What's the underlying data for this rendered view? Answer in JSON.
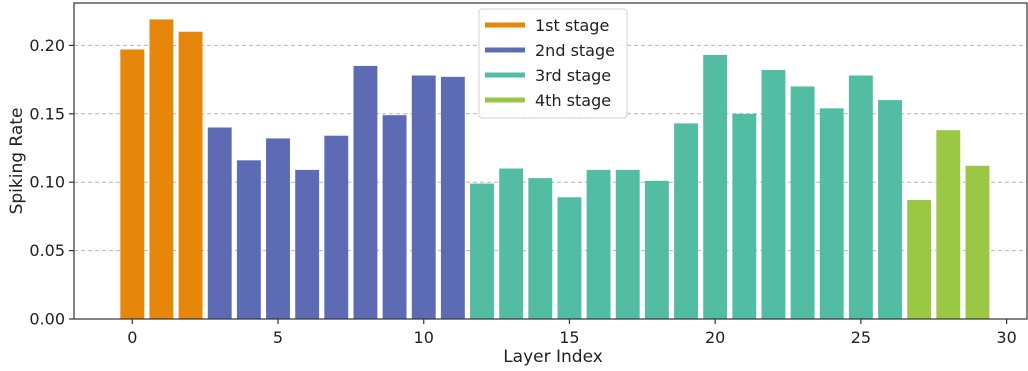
{
  "chart_data": {
    "type": "bar",
    "xlabel": "Layer Index",
    "ylabel": "Spiking Rate",
    "xlim": [
      -2.0,
      30.7
    ],
    "ylim": [
      0.0,
      0.231
    ],
    "xticks": [
      0,
      5,
      10,
      15,
      20,
      25,
      30
    ],
    "yticks": [
      0.0,
      0.05,
      0.1,
      0.15,
      0.2
    ],
    "ytick_labels": [
      "0.00",
      "0.05",
      "0.10",
      "0.15",
      "0.20"
    ],
    "grid": "y-dashed",
    "legend_position": "top-center",
    "series": [
      {
        "name": "1st stage",
        "color": "#E6860A",
        "x": [
          0,
          1,
          2
        ],
        "values": [
          0.197,
          0.219,
          0.21
        ]
      },
      {
        "name": "2nd stage",
        "color": "#5D6BB5",
        "x": [
          3,
          4,
          5,
          6,
          7,
          8,
          9,
          10,
          11
        ],
        "values": [
          0.14,
          0.116,
          0.132,
          0.109,
          0.134,
          0.185,
          0.149,
          0.178,
          0.177
        ]
      },
      {
        "name": "3rd stage",
        "color": "#52BDA2",
        "x": [
          12,
          13,
          14,
          15,
          16,
          17,
          18,
          19,
          20,
          21,
          22,
          23,
          24,
          25,
          26
        ],
        "values": [
          0.099,
          0.11,
          0.103,
          0.089,
          0.109,
          0.109,
          0.101,
          0.143,
          0.193,
          0.15,
          0.182,
          0.17,
          0.154,
          0.178,
          0.16
        ]
      },
      {
        "name": "4th stage",
        "color": "#9BC844",
        "x": [
          27,
          28,
          29
        ],
        "values": [
          0.087,
          0.138,
          0.112
        ]
      }
    ]
  }
}
